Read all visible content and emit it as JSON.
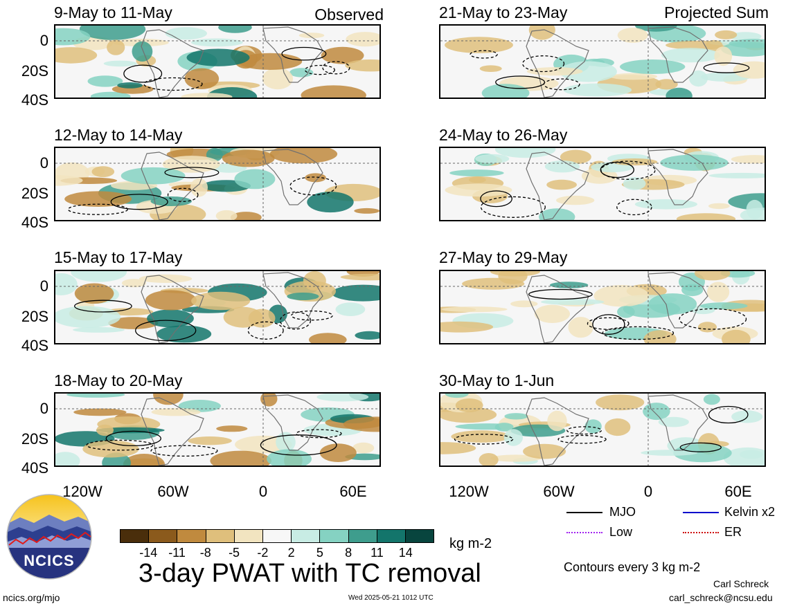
{
  "panels_left": [
    {
      "title": "9-May to 11-May",
      "label": "Observed"
    },
    {
      "title": "12-May to 14-May",
      "label": ""
    },
    {
      "title": "15-May to 17-May",
      "label": ""
    },
    {
      "title": "18-May to 20-May",
      "label": ""
    }
  ],
  "panels_right": [
    {
      "title": "21-May to 23-May",
      "label": "Projected Sum"
    },
    {
      "title": "24-May to 26-May",
      "label": ""
    },
    {
      "title": "27-May to 29-May",
      "label": ""
    },
    {
      "title": "30-May to 1-Jun",
      "label": ""
    }
  ],
  "y_ticks": [
    "0",
    "20S",
    "40S"
  ],
  "x_ticks": [
    "120W",
    "60W",
    "0",
    "60E"
  ],
  "legend": {
    "items": [
      {
        "name": "MJO",
        "color": "#000000"
      },
      {
        "name": "Kelvin x2",
        "color": "#0000cc"
      },
      {
        "name": "Low",
        "color": "#a020f0"
      },
      {
        "name": "ER",
        "color": "#cc0000"
      }
    ],
    "contour_note": "Contours every 3 kg m-2"
  },
  "colorbar": {
    "colors": [
      "#4a2e0b",
      "#8b5a1c",
      "#c08a3e",
      "#dfbf7c",
      "#f2e4c0",
      "#f7f7f7",
      "#c8ece4",
      "#85d2c2",
      "#3e9d8d",
      "#13756b",
      "#08453e"
    ],
    "ticks": [
      "-14",
      "-11",
      "-8",
      "-5",
      "-2",
      "2",
      "5",
      "8",
      "11",
      "14"
    ],
    "units": "kg m-2"
  },
  "title": "3-day PWAT with TC removal",
  "logo_text": "NCICS",
  "footer": {
    "url": "ncics.org/mjo",
    "timestamp": "Wed 2025-05-21 1012 UTC",
    "author": "Carl Schreck",
    "email": "carl_schreck@ncsu.edu"
  }
}
